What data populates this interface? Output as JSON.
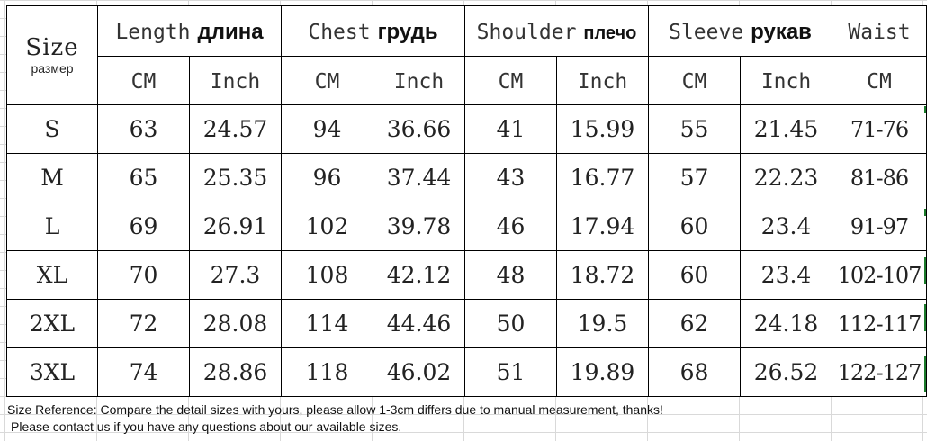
{
  "header": {
    "size_en": "Size",
    "size_ru": "размер",
    "groups": [
      {
        "en": "Length",
        "ru": "длина"
      },
      {
        "en": "Chest",
        "ru": "грудь"
      },
      {
        "en": "Shoulder",
        "ru": "плечо"
      },
      {
        "en": "Sleeve",
        "ru": "рукав"
      },
      {
        "en": "Waist",
        "ru": ""
      }
    ],
    "units": [
      "CM",
      "Inch",
      "CM",
      "Inch",
      "CM",
      "Inch",
      "CM",
      "Inch",
      "CM"
    ]
  },
  "rows": [
    {
      "size": "S",
      "values": [
        "63",
        "24.57",
        "94",
        "36.66",
        "41",
        "15.99",
        "55",
        "21.45",
        "71-76"
      ]
    },
    {
      "size": "M",
      "values": [
        "65",
        "25.35",
        "96",
        "37.44",
        "43",
        "16.77",
        "57",
        "22.23",
        "81-86"
      ]
    },
    {
      "size": "L",
      "values": [
        "69",
        "26.91",
        "102",
        "39.78",
        "46",
        "17.94",
        "60",
        "23.4",
        "91-97"
      ]
    },
    {
      "size": "XL",
      "values": [
        "70",
        "27.3",
        "108",
        "42.12",
        "48",
        "18.72",
        "60",
        "23.4",
        "102-107"
      ]
    },
    {
      "size": "2XL",
      "values": [
        "72",
        "28.08",
        "114",
        "44.46",
        "50",
        "19.5",
        "62",
        "24.18",
        "112-117"
      ]
    },
    {
      "size": "3XL",
      "values": [
        "74",
        "28.86",
        "118",
        "46.02",
        "51",
        "19.89",
        "68",
        "26.52",
        "122-127"
      ]
    }
  ],
  "notes": {
    "line1": "Size Reference: Compare the detail sizes with yours, please allow 1-3cm differs due to manual measurement, thanks!",
    "line2": "Please contact us if you have any questions about our available sizes."
  },
  "colors": {
    "border": "#000000",
    "gridline": "#d9d9d9",
    "edge_marker": "#1a7a2a"
  }
}
